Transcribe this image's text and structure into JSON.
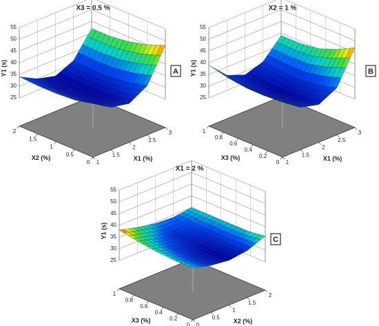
{
  "chart_data": [
    {
      "type": "surface3d",
      "title": "X3 = 0.5 %",
      "panel_label": "A",
      "xlabel": "X1 (%)",
      "ylabel": "X2 (%)",
      "zlabel": "Y1 (s)",
      "x": [
        1,
        1.5,
        2,
        2.5,
        3
      ],
      "y": [
        0,
        0.5,
        1,
        1.5,
        2
      ],
      "z": [
        [
          36,
          31,
          29.5,
          34,
          48
        ],
        [
          34,
          29.5,
          28,
          32,
          45
        ],
        [
          33.5,
          29,
          27.5,
          31,
          43
        ],
        [
          33.5,
          29,
          27.5,
          31,
          42
        ],
        [
          34,
          30,
          28,
          31.5,
          42
        ]
      ],
      "xlim": [
        1,
        3
      ],
      "xticks": [
        1,
        1.5,
        2,
        2.5,
        3
      ],
      "ylim": [
        0,
        2
      ],
      "yticks": [
        0,
        0.5,
        1,
        1.5,
        2
      ],
      "zlim": [
        25,
        55
      ],
      "zticks": [
        25,
        30,
        35,
        40,
        45,
        50,
        55
      ]
    },
    {
      "type": "surface3d",
      "title": "X2 = 1 %",
      "panel_label": "B",
      "xlabel": "X1 (%)",
      "ylabel": "X3 (%)",
      "zlabel": "Y1 (s)",
      "x": [
        1,
        1.5,
        2,
        2.5,
        3
      ],
      "y": [
        0,
        0.25,
        0.5,
        0.75,
        1
      ],
      "z": [
        [
          37,
          31,
          29,
          33,
          47
        ],
        [
          36,
          30,
          27.5,
          31,
          43
        ],
        [
          36,
          29.5,
          27,
          30,
          40
        ],
        [
          37,
          30,
          27.5,
          30.5,
          39
        ],
        [
          39,
          31.5,
          28.5,
          31,
          39
        ]
      ],
      "xlim": [
        1,
        3
      ],
      "xticks": [
        1,
        1.5,
        2,
        2.5,
        3
      ],
      "ylim": [
        0,
        1
      ],
      "yticks": [
        0,
        0.2,
        0.4,
        0.6,
        0.8,
        1
      ],
      "zlim": [
        25,
        55
      ],
      "zticks": [
        25,
        30,
        35,
        40,
        45,
        50,
        55
      ]
    },
    {
      "type": "surface3d",
      "title": "X1 = 2 %",
      "panel_label": "C",
      "xlabel": "X2 (%)",
      "ylabel": "X3 (%)",
      "zlabel": "Y1 (s)",
      "x": [
        0,
        0.5,
        1,
        1.5,
        2
      ],
      "y": [
        0,
        0.25,
        0.5,
        0.75,
        1
      ],
      "z": [
        [
          35,
          33,
          32,
          33,
          36
        ],
        [
          35,
          33,
          32,
          33,
          35
        ],
        [
          35.5,
          33.5,
          32.5,
          33,
          35
        ],
        [
          36.5,
          34.5,
          33,
          33.5,
          35
        ],
        [
          38,
          36,
          34.5,
          34,
          35
        ]
      ],
      "xlim": [
        0,
        2
      ],
      "xticks": [
        0,
        0.5,
        1,
        1.5,
        2
      ],
      "ylim": [
        0,
        1
      ],
      "yticks": [
        0,
        0.2,
        0.4,
        0.6,
        0.8,
        1
      ],
      "zlim": [
        25,
        55
      ],
      "zticks": [
        25,
        30,
        35,
        40,
        45,
        50,
        55
      ]
    }
  ]
}
